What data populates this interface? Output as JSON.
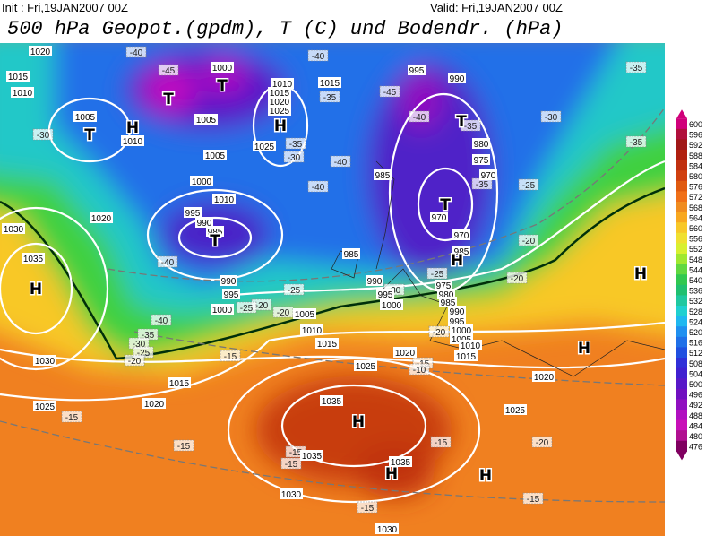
{
  "header": {
    "init": "Init : Fri,19JAN2007 00Z",
    "valid": "Valid: Fri,19JAN2007 00Z",
    "title": "500 hPa Geopot.(gpdm), T (C) und Bodendr. (hPa)"
  },
  "colorbar": {
    "labels": [
      "600",
      "596",
      "592",
      "588",
      "584",
      "580",
      "576",
      "572",
      "568",
      "564",
      "560",
      "556",
      "552",
      "548",
      "544",
      "540",
      "536",
      "532",
      "528",
      "524",
      "520",
      "516",
      "512",
      "508",
      "504",
      "500",
      "496",
      "492",
      "488",
      "484",
      "480",
      "476"
    ],
    "colors": [
      "#d0007a",
      "#b0103c",
      "#a01818",
      "#b02010",
      "#c03010",
      "#d04010",
      "#e05a10",
      "#f07018",
      "#f08c20",
      "#f8a820",
      "#f8c828",
      "#f0e030",
      "#d8f030",
      "#a0e830",
      "#60d840",
      "#30c850",
      "#20c070",
      "#20c8a0",
      "#20d0d0",
      "#20b8f0",
      "#2090f0",
      "#2070e8",
      "#2050e0",
      "#3030d8",
      "#4020d0",
      "#5818c8",
      "#7010c0",
      "#9010c0",
      "#b010c0",
      "#c810b8",
      "#b01090",
      "#800060"
    ]
  },
  "map": {
    "pressure_labels": [
      "1020",
      "1015",
      "1010",
      "1005",
      "1010",
      "1000",
      "1005",
      "1010",
      "1015",
      "1020",
      "1025",
      "1025",
      "1015",
      "995",
      "990",
      "1005",
      "1000",
      "1010",
      "995",
      "990",
      "985",
      "985",
      "980",
      "975",
      "970",
      "970",
      "970",
      "985",
      "985",
      "1020",
      "1030",
      "1035",
      "990",
      "995",
      "1000",
      "990",
      "995",
      "1000",
      "1005",
      "1010",
      "975",
      "980",
      "985",
      "990",
      "995",
      "1000",
      "1005",
      "1010",
      "1015",
      "1015",
      "1020",
      "1025",
      "1015",
      "1020",
      "1030",
      "1025",
      "1035",
      "1035",
      "1035",
      "1030",
      "1030",
      "1025",
      "1020"
    ],
    "temperature_labels": [
      "-40",
      "-45",
      "-40",
      "-35",
      "-45",
      "-40",
      "-35",
      "-30",
      "-35",
      "-35",
      "-30",
      "-35",
      "-30",
      "-40",
      "-40",
      "-35",
      "-25",
      "-20",
      "-20",
      "-30",
      "-25",
      "-40",
      "-25",
      "-20",
      "-25",
      "-20",
      "-40",
      "-35",
      "-30",
      "-25",
      "-20",
      "-15",
      "-15",
      "-10",
      "-20",
      "-15",
      "-15",
      "-15",
      "-15",
      "-15",
      "-20",
      "-15",
      "-15"
    ],
    "systems": [
      "T",
      "H",
      "T",
      "T",
      "H",
      "T",
      "H",
      "T",
      "T",
      "H",
      "H",
      "H",
      "H",
      "H",
      "H"
    ]
  }
}
